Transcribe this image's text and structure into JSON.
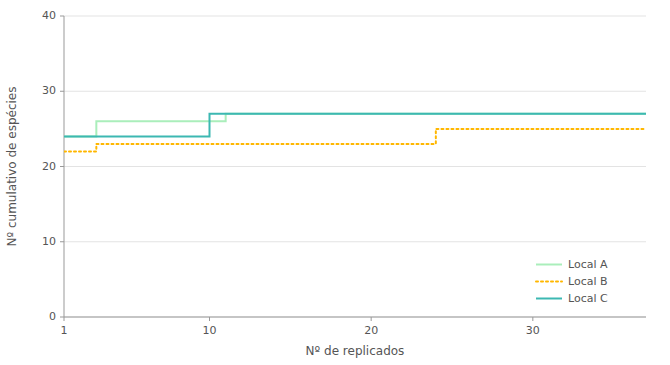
{
  "chart_data": {
    "type": "step",
    "x": [
      1,
      2,
      3,
      4,
      5,
      6,
      7,
      8,
      9,
      10,
      11,
      12,
      13,
      14,
      15,
      16,
      17,
      18,
      19,
      20,
      21,
      22,
      23,
      24,
      25,
      26,
      27,
      28,
      29,
      30,
      31,
      32,
      33,
      34,
      35,
      36,
      37
    ],
    "series": [
      {
        "name": "Local A",
        "color": "#aaeebb",
        "line_style": "solid",
        "values": [
          24,
          24,
          26,
          26,
          26,
          26,
          26,
          26,
          26,
          26,
          27,
          27,
          27,
          27,
          27,
          27,
          27,
          27,
          27,
          27,
          27,
          27,
          27,
          27,
          27,
          27,
          27,
          27,
          27,
          27,
          27,
          27,
          27,
          27,
          27,
          27,
          27
        ]
      },
      {
        "name": "Local B",
        "color": "#FFB700",
        "line_style": "dotted",
        "values": [
          22,
          22,
          23,
          23,
          23,
          23,
          23,
          23,
          23,
          23,
          23,
          23,
          23,
          23,
          23,
          23,
          23,
          23,
          23,
          23,
          23,
          23,
          23,
          25,
          25,
          25,
          25,
          25,
          25,
          25,
          25,
          25,
          25,
          25,
          25,
          25,
          25
        ]
      },
      {
        "name": "Local C",
        "color": "#3cb8b2",
        "line_style": "solid",
        "values": [
          24,
          24,
          24,
          24,
          24,
          24,
          24,
          24,
          24,
          27,
          27,
          27,
          27,
          27,
          27,
          27,
          27,
          27,
          27,
          27,
          27,
          27,
          27,
          27,
          27,
          27,
          27,
          27,
          27,
          27,
          27,
          27,
          27,
          27,
          27,
          27,
          27
        ]
      }
    ],
    "xlabel": "Nº de replicados",
    "ylabel": "Nº cumulativo de espécies",
    "xlim": [
      1,
      37
    ],
    "ylim": [
      0,
      40
    ],
    "xticks": [
      1,
      10,
      20,
      30
    ],
    "yticks": [
      0,
      10,
      20,
      30,
      40
    ],
    "grid": true,
    "legend": "lower right"
  }
}
